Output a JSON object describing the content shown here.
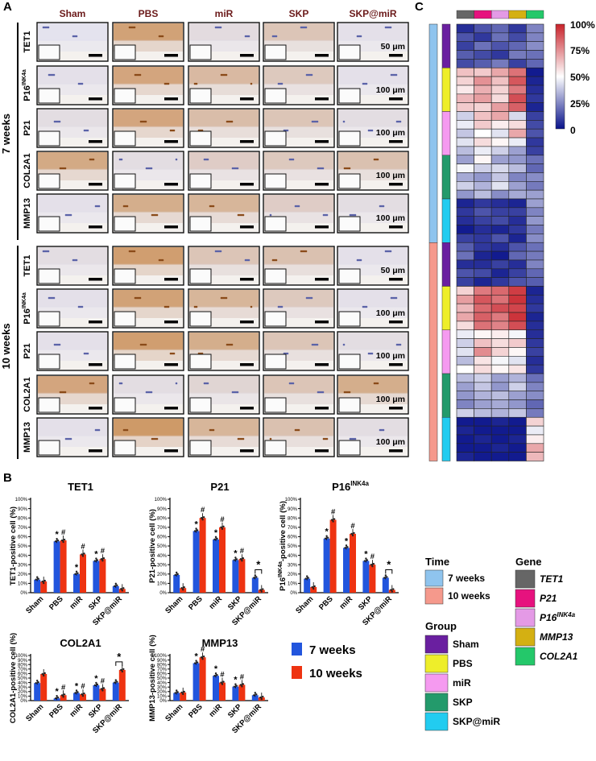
{
  "panel_labels": {
    "a": "A",
    "b": "B",
    "c": "C"
  },
  "histology": {
    "columns": [
      "Sham",
      "PBS",
      "miR",
      "SKP",
      "SKP@miR"
    ],
    "groups": [
      {
        "label": "7 weeks",
        "rows": [
          {
            "marker": "TET1",
            "sup": "",
            "scale": "50 μm"
          },
          {
            "marker": "P16",
            "sup": "INK4a",
            "scale": "100 μm"
          },
          {
            "marker": "P21",
            "sup": "",
            "scale": "100 μm"
          },
          {
            "marker": "COL2A1",
            "sup": "",
            "scale": "100 μm"
          },
          {
            "marker": "MMP13",
            "sup": "",
            "scale": "100 μm"
          }
        ]
      },
      {
        "label": "10 weeks",
        "rows": [
          {
            "marker": "TET1",
            "sup": "",
            "scale": "50 μm"
          },
          {
            "marker": "P16",
            "sup": "INK4a",
            "scale": "100 μm"
          },
          {
            "marker": "P21",
            "sup": "",
            "scale": "100 μm"
          },
          {
            "marker": "COL2A1",
            "sup": "",
            "scale": "100 μm"
          },
          {
            "marker": "MMP13",
            "sup": "",
            "scale": "100 μm"
          }
        ]
      }
    ],
    "stain_level": [
      [
        [
          0.02,
          0.85,
          0.12,
          0.4,
          0.05
        ],
        [
          0.05,
          0.8,
          0.55,
          0.35,
          0.05
        ],
        [
          0.1,
          0.8,
          0.5,
          0.4,
          0.1
        ],
        [
          0.75,
          0.1,
          0.3,
          0.35,
          0.45
        ],
        [
          0.05,
          0.7,
          0.6,
          0.3,
          0.1
        ]
      ],
      [
        [
          0.1,
          0.9,
          0.4,
          0.45,
          0.05
        ],
        [
          0.05,
          0.85,
          0.6,
          0.35,
          0.05
        ],
        [
          0.05,
          0.9,
          0.7,
          0.4,
          0.1
        ],
        [
          0.8,
          0.1,
          0.2,
          0.4,
          0.7
        ],
        [
          0.05,
          0.95,
          0.6,
          0.45,
          0.1
        ]
      ]
    ]
  },
  "chart_data": [
    {
      "type": "bar",
      "title": "TET1",
      "title_sup": "",
      "ylabel": "TET1-positive cell (%)",
      "ylim": [
        0,
        100
      ],
      "yticks": [
        "0%",
        "10%",
        "20%",
        "30%",
        "40%",
        "50%",
        "60%",
        "70%",
        "80%",
        "90%",
        "100%"
      ],
      "categories": [
        "Sham",
        "PBS",
        "miR",
        "SKP",
        "SKP@miR"
      ],
      "series": [
        {
          "name": "7 weeks",
          "values": [
            14,
            55,
            20,
            34,
            7
          ]
        },
        {
          "name": "10 weeks",
          "values": [
            12,
            56,
            41,
            36,
            4
          ]
        }
      ],
      "stars": [
        "",
        "*",
        "*",
        "*",
        ""
      ],
      "hashes": [
        "",
        "#",
        "#",
        "#",
        ""
      ],
      "bracket": null
    },
    {
      "type": "bar",
      "title": "P21",
      "title_sup": "",
      "ylabel": "P21-positive cell (%)",
      "ylim": [
        0,
        100
      ],
      "yticks": [
        "0%",
        "10%",
        "20%",
        "30%",
        "40%",
        "50%",
        "60%",
        "70%",
        "80%",
        "90%",
        "100%"
      ],
      "categories": [
        "Sham",
        "PBS",
        "miR",
        "SKP",
        "SKP@miR"
      ],
      "series": [
        {
          "name": "7 weeks",
          "values": [
            19,
            66,
            57,
            35,
            16
          ]
        },
        {
          "name": "10 weeks",
          "values": [
            5,
            80,
            70,
            36,
            3
          ]
        }
      ],
      "stars": [
        "",
        "*",
        "*",
        "*",
        ""
      ],
      "hashes": [
        "",
        "#",
        "#",
        "#",
        ""
      ],
      "bracket": {
        "index": 4,
        "label": "*"
      }
    },
    {
      "type": "bar",
      "title": "P16",
      "title_sup": "INK4a",
      "ylabel": "P16INK4a-positive cell (%)",
      "ylim": [
        0,
        100
      ],
      "yticks": [
        "0%",
        "10%",
        "20%",
        "30%",
        "40%",
        "50%",
        "60%",
        "70%",
        "80%",
        "90%",
        "100%"
      ],
      "categories": [
        "Sham",
        "PBS",
        "miR",
        "SKP",
        "SKP@miR"
      ],
      "series": [
        {
          "name": "7 weeks",
          "values": [
            15,
            58,
            48,
            34,
            16
          ]
        },
        {
          "name": "10 weeks",
          "values": [
            6,
            78,
            63,
            30,
            3
          ]
        }
      ],
      "stars": [
        "",
        "*",
        "*",
        "*",
        ""
      ],
      "hashes": [
        "",
        "#",
        "#",
        "#",
        ""
      ],
      "bracket": {
        "index": 4,
        "label": "*"
      }
    },
    {
      "type": "bar",
      "title": "COL2A1",
      "title_sup": "",
      "ylabel": "COL2A1-positive cell (%)",
      "ylim": [
        0,
        100
      ],
      "yticks": [
        "0%",
        "10%",
        "20%",
        "30%",
        "40%",
        "50%",
        "60%",
        "70%",
        "80%",
        "90%",
        "100%"
      ],
      "categories": [
        "Sham",
        "PBS",
        "miR",
        "SKP",
        "SKP@miR"
      ],
      "series": [
        {
          "name": "7 weeks",
          "values": [
            39,
            5,
            17,
            34,
            40
          ]
        },
        {
          "name": "10 weeks",
          "values": [
            59,
            12,
            14,
            26,
            68
          ]
        }
      ],
      "stars": [
        "",
        "*",
        "*",
        "*",
        ""
      ],
      "hashes": [
        "",
        "#",
        "#",
        "#",
        ""
      ],
      "bracket": {
        "index": 4,
        "label": "*"
      }
    },
    {
      "type": "bar",
      "title": "MMP13",
      "title_sup": "",
      "ylabel": "MMP13-positive cell (%)",
      "ylim": [
        0,
        100
      ],
      "yticks": [
        "0%",
        "10%",
        "20%",
        "30%",
        "40%",
        "50%",
        "60%",
        "70%",
        "80%",
        "90%",
        "100%"
      ],
      "categories": [
        "Sham",
        "PBS",
        "miR",
        "SKP",
        "SKP@miR"
      ],
      "series": [
        {
          "name": "7 weeks",
          "values": [
            17,
            83,
            55,
            31,
            12
          ]
        },
        {
          "name": "10 weeks",
          "values": [
            18,
            96,
            40,
            35,
            7
          ]
        }
      ],
      "stars": [
        "",
        "*",
        "*",
        "*",
        ""
      ],
      "hashes": [
        "",
        "#",
        "#",
        "#",
        ""
      ],
      "bracket": null
    }
  ],
  "bar_legend": [
    {
      "label": "7 weeks",
      "color": "#2255dd"
    },
    {
      "label": "10 weeks",
      "color": "#ee3311"
    }
  ],
  "heatmap": {
    "gene_colors": [
      "#666666",
      "#e6127e",
      "#e49ae6",
      "#d4b012",
      "#24c86a"
    ],
    "time_colors": {
      "7 weeks": "#8fc4ee",
      "10 weeks": "#f5998c"
    },
    "group_colors": {
      "Sham": "#6a1fa0",
      "PBS": "#eeee2a",
      "miR": "#f59af0",
      "SKP": "#239a6b",
      "SKP@miR": "#22ccf0"
    },
    "rows_per_group": 5,
    "times": [
      "7 weeks",
      "10 weeks"
    ],
    "groups": [
      "Sham",
      "PBS",
      "miR",
      "SKP",
      "SKP@miR"
    ],
    "values": [
      [
        6,
        14,
        18,
        8,
        24
      ],
      [
        14,
        8,
        20,
        12,
        24
      ],
      [
        10,
        20,
        14,
        18,
        26
      ],
      [
        16,
        12,
        8,
        22,
        20
      ],
      [
        12,
        16,
        22,
        10,
        18
      ],
      [
        64,
        62,
        70,
        82,
        2
      ],
      [
        60,
        75,
        64,
        88,
        4
      ],
      [
        55,
        68,
        60,
        80,
        6
      ],
      [
        66,
        72,
        58,
        90,
        8
      ],
      [
        62,
        60,
        72,
        86,
        4
      ],
      [
        40,
        64,
        70,
        42,
        10
      ],
      [
        46,
        62,
        54,
        58,
        12
      ],
      [
        38,
        50,
        44,
        70,
        14
      ],
      [
        44,
        58,
        52,
        46,
        8
      ],
      [
        36,
        46,
        40,
        30,
        10
      ],
      [
        30,
        52,
        30,
        28,
        20
      ],
      [
        48,
        40,
        42,
        36,
        18
      ],
      [
        32,
        28,
        38,
        24,
        26
      ],
      [
        40,
        34,
        44,
        30,
        22
      ],
      [
        28,
        36,
        26,
        32,
        30
      ],
      [
        4,
        8,
        6,
        4,
        30
      ],
      [
        8,
        14,
        10,
        10,
        24
      ],
      [
        6,
        10,
        12,
        6,
        28
      ],
      [
        2,
        6,
        4,
        8,
        22
      ],
      [
        10,
        8,
        14,
        4,
        26
      ],
      [
        16,
        8,
        6,
        14,
        20
      ],
      [
        20,
        4,
        2,
        18,
        22
      ],
      [
        6,
        6,
        10,
        6,
        24
      ],
      [
        14,
        12,
        4,
        10,
        18
      ],
      [
        10,
        4,
        8,
        14,
        16
      ],
      [
        60,
        80,
        84,
        94,
        4
      ],
      [
        72,
        88,
        82,
        96,
        6
      ],
      [
        66,
        84,
        90,
        92,
        8
      ],
      [
        70,
        86,
        80,
        96,
        4
      ],
      [
        58,
        82,
        78,
        90,
        6
      ],
      [
        46,
        52,
        54,
        48,
        6
      ],
      [
        40,
        64,
        58,
        62,
        8
      ],
      [
        44,
        76,
        60,
        52,
        10
      ],
      [
        36,
        56,
        48,
        44,
        6
      ],
      [
        50,
        58,
        52,
        56,
        8
      ],
      [
        36,
        40,
        30,
        34,
        20
      ],
      [
        30,
        38,
        28,
        40,
        24
      ],
      [
        28,
        34,
        36,
        30,
        26
      ],
      [
        24,
        30,
        32,
        28,
        18
      ],
      [
        40,
        36,
        34,
        38,
        22
      ],
      [
        2,
        2,
        4,
        2,
        60
      ],
      [
        4,
        2,
        2,
        2,
        46
      ],
      [
        2,
        4,
        2,
        4,
        54
      ],
      [
        2,
        2,
        4,
        2,
        70
      ],
      [
        4,
        2,
        2,
        2,
        66
      ]
    ],
    "colorbar": {
      "ticks": [
        "100%",
        "75%",
        "50%",
        "25%",
        "0"
      ]
    },
    "legend_time_title": "Time",
    "legend_group_title": "Group",
    "legend_gene_title": "Gene",
    "gene_labels": [
      {
        "base": "TET1",
        "sup": ""
      },
      {
        "base": "P21",
        "sup": ""
      },
      {
        "base": "P16",
        "sup": "INK4a"
      },
      {
        "base": "MMP13",
        "sup": ""
      },
      {
        "base": "COL2A1",
        "sup": ""
      }
    ]
  }
}
